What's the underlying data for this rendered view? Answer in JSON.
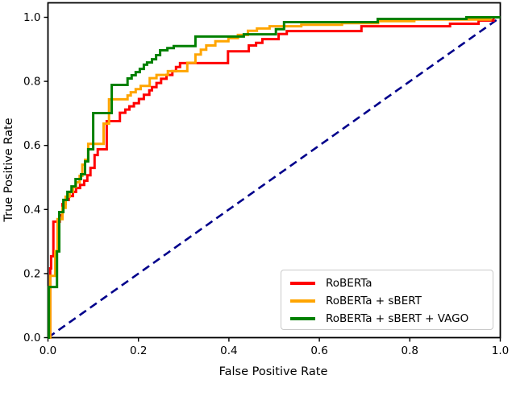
{
  "chart_data": {
    "type": "line",
    "subtype": "roc-curves",
    "title": "",
    "xlabel": "False Positive Rate",
    "ylabel": "True Positive Rate",
    "xlim": [
      0.0,
      1.0
    ],
    "ylim": [
      0.0,
      1.045
    ],
    "grid": false,
    "legend_position": "lower right",
    "xtick_labels": [
      "0.0",
      "0.2",
      "0.4",
      "0.6",
      "0.8",
      "1.0"
    ],
    "ytick_labels": [
      "0.0",
      "0.2",
      "0.4",
      "0.6",
      "0.8",
      "1.0"
    ],
    "xtick_values": [
      0,
      0.2,
      0.4,
      0.6,
      0.8,
      1.0
    ],
    "ytick_values": [
      0,
      0.2,
      0.4,
      0.6,
      0.8,
      1.0
    ],
    "axis_color": "#000000",
    "series": [
      {
        "name": "RoBERTa",
        "color": "#ff0000",
        "style": "solid",
        "points": [
          [
            0,
            0
          ],
          [
            0.005,
            0
          ],
          [
            0.005,
            0.216
          ],
          [
            0.007,
            0.216
          ],
          [
            0.007,
            0.254
          ],
          [
            0.012,
            0.254
          ],
          [
            0.012,
            0.362
          ],
          [
            0.026,
            0.362
          ],
          [
            0.026,
            0.382
          ],
          [
            0.032,
            0.382
          ],
          [
            0.032,
            0.405
          ],
          [
            0.039,
            0.417
          ],
          [
            0.046,
            0.43
          ],
          [
            0.055,
            0.442
          ],
          [
            0.062,
            0.455
          ],
          [
            0.071,
            0.467
          ],
          [
            0.08,
            0.477
          ],
          [
            0.087,
            0.49
          ],
          [
            0.094,
            0.507
          ],
          [
            0.103,
            0.53
          ],
          [
            0.103,
            0.555
          ],
          [
            0.11,
            0.57
          ],
          [
            0.11,
            0.588
          ],
          [
            0.13,
            0.588
          ],
          [
            0.13,
            0.676
          ],
          [
            0.159,
            0.676
          ],
          [
            0.171,
            0.702
          ],
          [
            0.18,
            0.712
          ],
          [
            0.19,
            0.722
          ],
          [
            0.201,
            0.732
          ],
          [
            0.212,
            0.745
          ],
          [
            0.224,
            0.758
          ],
          [
            0.23,
            0.772
          ],
          [
            0.24,
            0.782
          ],
          [
            0.25,
            0.795
          ],
          [
            0.262,
            0.808
          ],
          [
            0.275,
            0.82
          ],
          [
            0.283,
            0.832
          ],
          [
            0.292,
            0.845
          ],
          [
            0.301,
            0.857
          ],
          [
            0.398,
            0.857
          ],
          [
            0.398,
            0.877
          ],
          [
            0.408,
            0.894
          ],
          [
            0.444,
            0.894
          ],
          [
            0.46,
            0.912
          ],
          [
            0.474,
            0.92
          ],
          [
            0.51,
            0.932
          ],
          [
            0.51,
            0.945
          ],
          [
            0.528,
            0.948
          ],
          [
            0.554,
            0.957
          ],
          [
            0.693,
            0.957
          ],
          [
            0.693,
            0.972
          ],
          [
            0.889,
            0.972
          ],
          [
            0.889,
            0.98
          ],
          [
            0.952,
            0.98
          ],
          [
            0.96,
            0.99
          ],
          [
            0.985,
            0.99
          ],
          [
            0.985,
            1
          ],
          [
            1,
            1
          ]
        ]
      },
      {
        "name": "RoBERTa + sBERT",
        "color": "#ffa500",
        "style": "solid",
        "points": [
          [
            0,
            0
          ],
          [
            0.005,
            0
          ],
          [
            0.005,
            0.193
          ],
          [
            0.016,
            0.193
          ],
          [
            0.016,
            0.27
          ],
          [
            0.021,
            0.27
          ],
          [
            0.021,
            0.37
          ],
          [
            0.032,
            0.37
          ],
          [
            0.032,
            0.405
          ],
          [
            0.039,
            0.405
          ],
          [
            0.039,
            0.43
          ],
          [
            0.048,
            0.44
          ],
          [
            0.055,
            0.455
          ],
          [
            0.062,
            0.47
          ],
          [
            0.07,
            0.485
          ],
          [
            0.076,
            0.505
          ],
          [
            0.076,
            0.53
          ],
          [
            0.082,
            0.54
          ],
          [
            0.089,
            0.555
          ],
          [
            0.089,
            0.605
          ],
          [
            0.123,
            0.605
          ],
          [
            0.123,
            0.668
          ],
          [
            0.135,
            0.668
          ],
          [
            0.135,
            0.744
          ],
          [
            0.176,
            0.744
          ],
          [
            0.183,
            0.756
          ],
          [
            0.194,
            0.766
          ],
          [
            0.205,
            0.776
          ],
          [
            0.225,
            0.786
          ],
          [
            0.225,
            0.8
          ],
          [
            0.24,
            0.81
          ],
          [
            0.265,
            0.82
          ],
          [
            0.265,
            0.832
          ],
          [
            0.308,
            0.832
          ],
          [
            0.308,
            0.858
          ],
          [
            0.326,
            0.858
          ],
          [
            0.326,
            0.871
          ],
          [
            0.338,
            0.884
          ],
          [
            0.35,
            0.899
          ],
          [
            0.37,
            0.912
          ],
          [
            0.399,
            0.925
          ],
          [
            0.42,
            0.935
          ],
          [
            0.442,
            0.945
          ],
          [
            0.462,
            0.958
          ],
          [
            0.49,
            0.965
          ],
          [
            0.56,
            0.972
          ],
          [
            0.65,
            0.977
          ],
          [
            0.73,
            0.982
          ],
          [
            0.81,
            0.988
          ],
          [
            0.938,
            0.993
          ],
          [
            0.978,
            0.993
          ],
          [
            0.978,
            1
          ],
          [
            1,
            1
          ]
        ]
      },
      {
        "name": "RoBERTa + sBERT + VAGO",
        "color": "#008000",
        "style": "solid",
        "points": [
          [
            0,
            0
          ],
          [
            0.002,
            0
          ],
          [
            0.002,
            0.158
          ],
          [
            0.02,
            0.158
          ],
          [
            0.02,
            0.269
          ],
          [
            0.025,
            0.269
          ],
          [
            0.025,
            0.392
          ],
          [
            0.034,
            0.392
          ],
          [
            0.034,
            0.43
          ],
          [
            0.043,
            0.43
          ],
          [
            0.043,
            0.455
          ],
          [
            0.052,
            0.455
          ],
          [
            0.052,
            0.472
          ],
          [
            0.061,
            0.472
          ],
          [
            0.061,
            0.495
          ],
          [
            0.073,
            0.495
          ],
          [
            0.073,
            0.51
          ],
          [
            0.082,
            0.51
          ],
          [
            0.082,
            0.55
          ],
          [
            0.089,
            0.55
          ],
          [
            0.089,
            0.588
          ],
          [
            0.1,
            0.588
          ],
          [
            0.1,
            0.701
          ],
          [
            0.141,
            0.701
          ],
          [
            0.141,
            0.789
          ],
          [
            0.176,
            0.789
          ],
          [
            0.185,
            0.809
          ],
          [
            0.194,
            0.819
          ],
          [
            0.203,
            0.829
          ],
          [
            0.212,
            0.839
          ],
          [
            0.219,
            0.852
          ],
          [
            0.23,
            0.859
          ],
          [
            0.239,
            0.869
          ],
          [
            0.248,
            0.882
          ],
          [
            0.264,
            0.897
          ],
          [
            0.278,
            0.904
          ],
          [
            0.278,
            0.91
          ],
          [
            0.326,
            0.91
          ],
          [
            0.326,
            0.93
          ],
          [
            0.349,
            0.94
          ],
          [
            0.433,
            0.94
          ],
          [
            0.433,
            0.947
          ],
          [
            0.504,
            0.947
          ],
          [
            0.504,
            0.963
          ],
          [
            0.522,
            0.963
          ],
          [
            0.522,
            0.985
          ],
          [
            0.729,
            0.985
          ],
          [
            0.729,
            0.995
          ],
          [
            0.925,
            0.995
          ],
          [
            0.925,
            1
          ],
          [
            1,
            1
          ]
        ]
      }
    ],
    "reference_line": {
      "name": "chance diagonal",
      "color": "#00008b",
      "style": "dashed",
      "points": [
        [
          0,
          0
        ],
        [
          1,
          1
        ]
      ]
    }
  }
}
